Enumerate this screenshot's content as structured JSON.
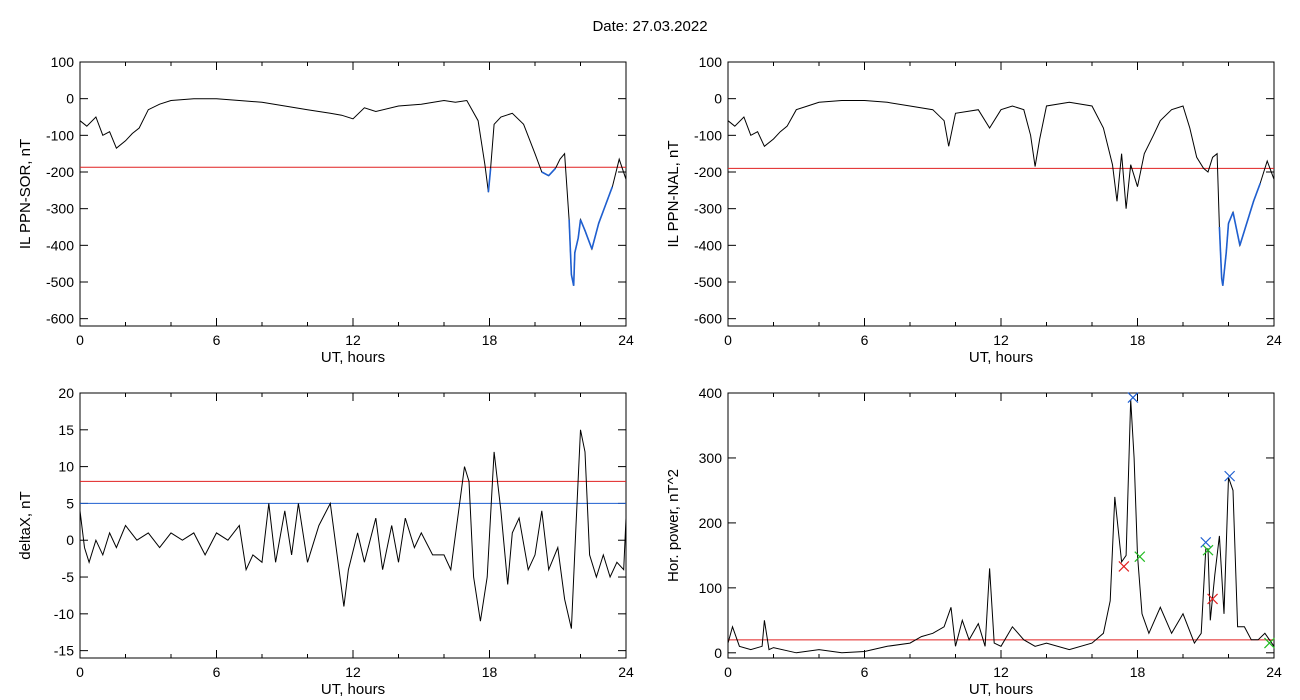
{
  "title": "Date:  27.03.2022",
  "colors": {
    "threshold_red": "#e02020",
    "highlight_blue": "#1f5fd0",
    "green_marker": "#22bb22",
    "line": "#000000"
  },
  "chart_data": [
    {
      "type": "line",
      "xlabel": "UT, hours",
      "ylabel": "IL PPN-SOR, nT",
      "xlim": [
        0,
        24
      ],
      "ylim": [
        -620,
        100
      ],
      "xticks": [
        0,
        6,
        12,
        18,
        24
      ],
      "yticks": [
        -600,
        -500,
        -400,
        -300,
        -200,
        -100,
        0,
        100
      ],
      "hline": {
        "y": -187,
        "color": "red"
      },
      "highlight": "below threshold drawn in blue",
      "x": [
        0,
        0.3,
        0.7,
        1.0,
        1.3,
        1.6,
        2.0,
        2.3,
        2.6,
        3.0,
        3.5,
        4.0,
        5.0,
        6.0,
        7.0,
        8.0,
        9.0,
        10.0,
        11.0,
        11.5,
        12.0,
        12.5,
        13.0,
        14.0,
        15.0,
        16.0,
        16.5,
        17.0,
        17.5,
        17.8,
        17.95,
        18.05,
        18.2,
        18.5,
        19.0,
        19.5,
        20.0,
        20.3,
        20.6,
        20.9,
        21.1,
        21.3,
        21.5,
        21.6,
        21.7,
        21.75,
        21.9,
        22.0,
        22.2,
        22.5,
        22.8,
        23.1,
        23.4,
        23.7,
        24.0
      ],
      "y": [
        -60,
        -75,
        -50,
        -100,
        -90,
        -135,
        -115,
        -95,
        -80,
        -30,
        -15,
        -5,
        0,
        0,
        -5,
        -10,
        -20,
        -30,
        -40,
        -45,
        -55,
        -25,
        -35,
        -20,
        -15,
        -5,
        -10,
        -5,
        -60,
        -180,
        -255,
        -190,
        -70,
        -50,
        -40,
        -70,
        -150,
        -200,
        -210,
        -190,
        -165,
        -150,
        -330,
        -480,
        -510,
        -420,
        -380,
        -330,
        -360,
        -410,
        -340,
        -290,
        -240,
        -165,
        -220
      ]
    },
    {
      "type": "line",
      "xlabel": "UT, hours",
      "ylabel": "IL PPN-NAL, nT",
      "xlim": [
        0,
        24
      ],
      "ylim": [
        -620,
        100
      ],
      "xticks": [
        0,
        6,
        12,
        18,
        24
      ],
      "yticks": [
        -600,
        -500,
        -400,
        -300,
        -200,
        -100,
        0,
        100
      ],
      "hline": {
        "y": -190,
        "color": "red"
      },
      "highlight": "below threshold drawn in blue",
      "x": [
        0,
        0.3,
        0.7,
        1.0,
        1.3,
        1.6,
        2.0,
        2.3,
        2.6,
        3.0,
        3.5,
        4.0,
        5.0,
        6.0,
        7.0,
        8.0,
        9.0,
        9.5,
        9.7,
        10.0,
        11.0,
        11.5,
        12.0,
        12.5,
        13.0,
        13.3,
        13.5,
        13.7,
        14.0,
        15.0,
        16.0,
        16.5,
        16.9,
        17.1,
        17.3,
        17.5,
        17.7,
        18.0,
        18.3,
        18.7,
        19.0,
        19.5,
        20.0,
        20.3,
        20.6,
        20.9,
        21.1,
        21.3,
        21.5,
        21.6,
        21.7,
        21.75,
        21.9,
        22.0,
        22.2,
        22.5,
        22.8,
        23.1,
        23.4,
        23.7,
        24.0
      ],
      "y": [
        -60,
        -75,
        -50,
        -100,
        -90,
        -130,
        -110,
        -90,
        -75,
        -30,
        -20,
        -10,
        -5,
        -5,
        -10,
        -20,
        -30,
        -60,
        -130,
        -40,
        -30,
        -80,
        -30,
        -20,
        -30,
        -100,
        -185,
        -110,
        -20,
        -10,
        -20,
        -80,
        -180,
        -280,
        -150,
        -300,
        -180,
        -240,
        -150,
        -100,
        -60,
        -30,
        -20,
        -80,
        -160,
        -190,
        -200,
        -160,
        -150,
        -350,
        -490,
        -510,
        -420,
        -340,
        -310,
        -400,
        -340,
        -280,
        -230,
        -170,
        -220
      ]
    },
    {
      "type": "line",
      "xlabel": "UT, hours",
      "ylabel": "deltaX, nT",
      "xlim": [
        0,
        24
      ],
      "ylim": [
        -16,
        20
      ],
      "xticks": [
        0,
        6,
        12,
        18,
        24
      ],
      "yticks": [
        -15,
        -10,
        -5,
        0,
        5,
        10,
        15,
        20
      ],
      "hlines": [
        {
          "y": 8,
          "color": "red"
        },
        {
          "y": 5,
          "color": "blue"
        }
      ],
      "x": [
        0,
        0.2,
        0.4,
        0.7,
        1.0,
        1.3,
        1.6,
        2.0,
        2.5,
        3.0,
        3.5,
        4.0,
        4.5,
        5.0,
        5.5,
        6.0,
        6.5,
        7.0,
        7.3,
        7.6,
        8.0,
        8.3,
        8.6,
        9.0,
        9.3,
        9.6,
        10.0,
        10.5,
        11.0,
        11.3,
        11.6,
        11.8,
        12.2,
        12.5,
        13.0,
        13.3,
        13.7,
        14.0,
        14.3,
        14.7,
        15.0,
        15.5,
        16.0,
        16.3,
        16.6,
        16.9,
        17.1,
        17.3,
        17.6,
        17.9,
        18.2,
        18.5,
        18.8,
        19.0,
        19.3,
        19.7,
        20.0,
        20.3,
        20.6,
        21.0,
        21.3,
        21.6,
        21.8,
        22.0,
        22.2,
        22.4,
        22.7,
        23.0,
        23.3,
        23.6,
        23.9,
        24.0
      ],
      "y": [
        4,
        -1,
        -3,
        0,
        -2,
        1,
        -1,
        2,
        0,
        1,
        -1,
        1,
        0,
        1,
        -2,
        1,
        0,
        2,
        -4,
        -2,
        -3,
        5,
        -3,
        4,
        -2,
        5,
        -3,
        2,
        5,
        -2,
        -9,
        -4,
        1,
        -3,
        3,
        -4,
        2,
        -3,
        3,
        -1,
        1,
        -2,
        -2,
        -4,
        3,
        10,
        8,
        -5,
        -11,
        -5,
        12,
        4,
        -6,
        1,
        3,
        -4,
        -2,
        4,
        -4,
        -1,
        -8,
        -12,
        2,
        15,
        12,
        -2,
        -5,
        -2,
        -5,
        -3,
        -4,
        3
      ]
    },
    {
      "type": "line",
      "xlabel": "UT, hours",
      "ylabel": "Hor. power, nT^2",
      "xlim": [
        0,
        24
      ],
      "ylim": [
        -8,
        400
      ],
      "xticks": [
        0,
        6,
        12,
        18,
        24
      ],
      "yticks": [
        0,
        100,
        200,
        300,
        400
      ],
      "hline": {
        "y": 20,
        "color": "red"
      },
      "x": [
        0,
        0.2,
        0.5,
        1.0,
        1.5,
        1.6,
        1.8,
        2.0,
        3.0,
        4.0,
        5.0,
        6.0,
        7.0,
        8.0,
        8.5,
        9.0,
        9.5,
        9.8,
        10.0,
        10.3,
        10.6,
        11.0,
        11.3,
        11.5,
        11.7,
        12.0,
        12.5,
        13.0,
        13.5,
        14.0,
        15.0,
        16.0,
        16.5,
        16.8,
        17.0,
        17.3,
        17.5,
        17.7,
        17.85,
        18.0,
        18.2,
        18.5,
        19.0,
        19.5,
        20.0,
        20.5,
        20.8,
        21.0,
        21.1,
        21.2,
        21.4,
        21.6,
        21.8,
        22.0,
        22.2,
        22.4,
        22.7,
        23.0,
        23.3,
        23.6,
        24.0
      ],
      "y": [
        15,
        40,
        10,
        5,
        10,
        50,
        5,
        8,
        0,
        5,
        0,
        2,
        10,
        15,
        25,
        30,
        40,
        70,
        10,
        50,
        20,
        45,
        10,
        130,
        15,
        10,
        40,
        20,
        10,
        15,
        5,
        15,
        30,
        80,
        240,
        140,
        150,
        390,
        300,
        150,
        60,
        30,
        70,
        30,
        60,
        15,
        30,
        160,
        160,
        50,
        120,
        180,
        60,
        270,
        250,
        40,
        40,
        20,
        20,
        30,
        10
      ]
    }
  ],
  "markers": {
    "blue_x": [
      {
        "chart": 3,
        "x": 17.8,
        "y": 393
      },
      {
        "chart": 3,
        "x": 21.0,
        "y": 170
      },
      {
        "chart": 3,
        "x": 22.05,
        "y": 272
      }
    ],
    "red_x": [
      {
        "chart": 3,
        "x": 17.4,
        "y": 133
      },
      {
        "chart": 3,
        "x": 21.3,
        "y": 83
      }
    ],
    "green_x": [
      {
        "chart": 3,
        "x": 18.1,
        "y": 148
      },
      {
        "chart": 3,
        "x": 21.1,
        "y": 158
      },
      {
        "chart": 3,
        "x": 23.8,
        "y": 15
      }
    ]
  }
}
